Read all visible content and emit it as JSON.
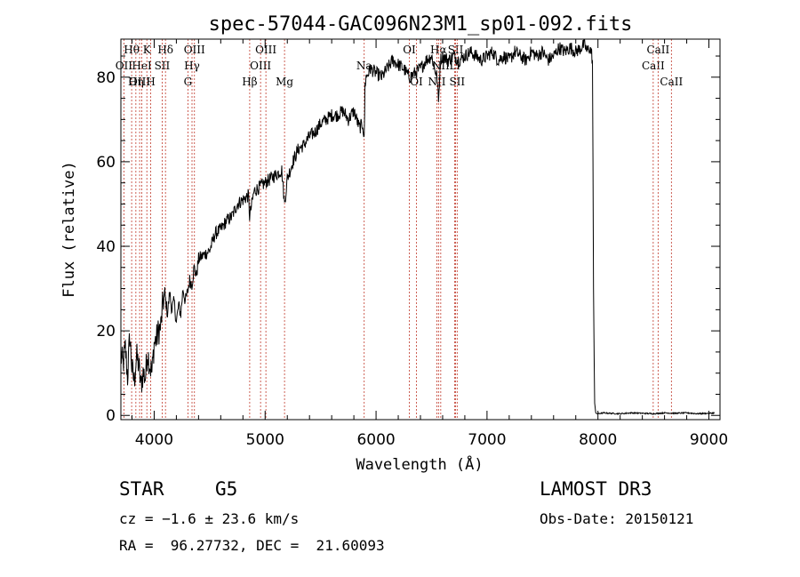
{
  "chart_data": {
    "type": "line",
    "title": "spec-57044-GAC096N23M1_sp01-092.fits",
    "xlabel": "Wavelength (Å)",
    "ylabel": "Flux (relative)",
    "xlim": [
      3700,
      9100
    ],
    "ylim": [
      -1,
      89
    ],
    "x_ticks": [
      4000,
      5000,
      6000,
      7000,
      8000,
      9000
    ],
    "y_ticks": [
      0,
      20,
      40,
      60,
      80
    ],
    "grid": false,
    "series": [
      {
        "name": "flux",
        "x": [
          3700,
          3720,
          3740,
          3760,
          3780,
          3800,
          3820,
          3840,
          3860,
          3880,
          3900,
          3920,
          3940,
          3960,
          3980,
          4000,
          4020,
          4040,
          4060,
          4080,
          4100,
          4120,
          4140,
          4160,
          4180,
          4200,
          4220,
          4240,
          4260,
          4280,
          4300,
          4320,
          4340,
          4360,
          4380,
          4400,
          4450,
          4500,
          4550,
          4600,
          4650,
          4700,
          4750,
          4800,
          4850,
          4860,
          4900,
          4950,
          5000,
          5050,
          5100,
          5150,
          5175,
          5200,
          5250,
          5300,
          5350,
          5400,
          5450,
          5500,
          5550,
          5600,
          5650,
          5700,
          5750,
          5800,
          5850,
          5880,
          5893,
          5900,
          5910,
          5950,
          6000,
          6050,
          6100,
          6150,
          6200,
          6250,
          6300,
          6350,
          6400,
          6450,
          6500,
          6550,
          6563,
          6580,
          6600,
          6650,
          6700,
          6750,
          6800,
          6850,
          6900,
          6950,
          7000,
          7050,
          7100,
          7150,
          7200,
          7250,
          7300,
          7350,
          7400,
          7450,
          7500,
          7550,
          7600,
          7650,
          7700,
          7750,
          7800,
          7850,
          7880,
          7900,
          7920,
          7940,
          7950,
          7955,
          7960,
          7970,
          7980,
          8000,
          8050,
          8100,
          8200,
          8300,
          8400,
          8500,
          8600,
          8700,
          8800,
          8900,
          9000,
          9050
        ],
        "y": [
          14,
          12,
          16,
          9,
          19,
          11,
          8,
          14,
          12,
          7,
          10,
          9,
          15,
          12,
          10,
          17,
          18,
          20,
          21,
          27,
          28,
          24,
          29,
          25,
          27,
          22,
          26,
          24,
          30,
          27,
          29,
          32,
          31,
          35,
          33,
          37,
          38,
          39,
          43,
          44,
          46,
          47,
          50,
          51,
          52,
          47,
          53,
          54,
          55,
          56,
          57,
          58,
          50,
          56,
          60,
          63,
          64,
          66,
          67,
          69,
          70,
          71,
          71,
          72,
          70,
          72,
          68,
          69,
          65,
          78,
          80,
          82,
          81,
          80,
          82,
          84,
          83,
          82,
          80,
          81,
          82,
          84,
          85,
          80,
          74,
          84,
          85,
          84,
          85,
          84,
          85,
          86,
          85,
          84,
          85,
          86,
          84,
          85,
          84,
          86,
          85,
          84,
          86,
          85,
          86,
          84,
          85,
          87,
          86,
          87,
          86,
          87,
          88,
          86,
          87,
          86,
          84,
          60,
          30,
          3,
          0.5,
          0.4,
          0.6,
          0.5,
          0.4,
          0.6,
          0.5,
          0.4,
          0.6,
          0.5,
          0.6,
          0.4,
          0.5,
          0.6
        ]
      }
    ],
    "line_markers": [
      {
        "wave": 3797,
        "label": "Hθ",
        "row": 0
      },
      {
        "wave": 3727,
        "label": "OII",
        "row": 1
      },
      {
        "wave": 3835,
        "label": "Hη",
        "row": 2
      },
      {
        "wave": 3869,
        "label": "OIII",
        "row": 2
      },
      {
        "wave": 3889,
        "label": "HeI",
        "row": 1
      },
      {
        "wave": 3934,
        "label": "K",
        "row": 0
      },
      {
        "wave": 3969,
        "label": "H",
        "row": 2
      },
      {
        "wave": 4072,
        "label": "SII",
        "row": 1
      },
      {
        "wave": 4102,
        "label": "Hδ",
        "row": 0
      },
      {
        "wave": 4304,
        "label": "G",
        "row": 2
      },
      {
        "wave": 4341,
        "label": "Hγ",
        "row": 1
      },
      {
        "wave": 4363,
        "label": "OIII",
        "row": 0
      },
      {
        "wave": 4861,
        "label": "Hβ",
        "row": 2
      },
      {
        "wave": 4959,
        "label": "OIII",
        "row": 1
      },
      {
        "wave": 5007,
        "label": "OIII",
        "row": 0
      },
      {
        "wave": 5175,
        "label": "Mg",
        "row": 2
      },
      {
        "wave": 5893,
        "label": "Na",
        "row": 1
      },
      {
        "wave": 6300,
        "label": "OI",
        "row": 0
      },
      {
        "wave": 6364,
        "label": "OI",
        "row": 2
      },
      {
        "wave": 6548,
        "label": "NII",
        "row": 2
      },
      {
        "wave": 6563,
        "label": "Hα",
        "row": 0
      },
      {
        "wave": 6583,
        "label": "NII",
        "row": 1
      },
      {
        "wave": 6708,
        "label": "Li",
        "row": 1
      },
      {
        "wave": 6717,
        "label": "SII",
        "row": 0
      },
      {
        "wave": 6731,
        "label": "SII",
        "row": 2
      },
      {
        "wave": 8498,
        "label": "CaII",
        "row": 1
      },
      {
        "wave": 8542,
        "label": "CaII",
        "row": 0
      },
      {
        "wave": 8662,
        "label": "CaII",
        "row": 2
      }
    ]
  },
  "footer": {
    "object_class": "STAR",
    "subclass": "G5",
    "survey": "LAMOST DR3",
    "redshift": "cz = −1.6 ± 23.6 km/s",
    "obs_date": "Obs-Date: 20150121",
    "coords": "RA =  96.27732, DEC =  21.60093"
  }
}
